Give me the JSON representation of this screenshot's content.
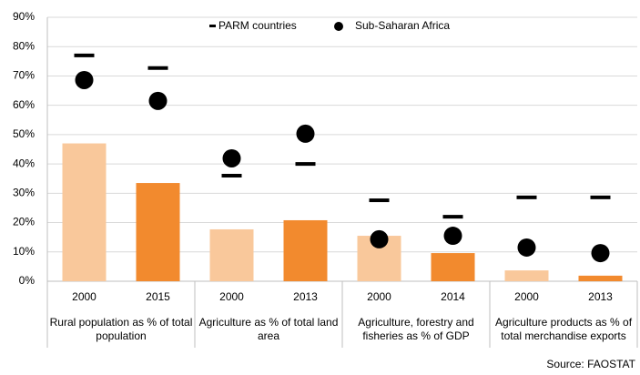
{
  "chart_data": {
    "type": "bar",
    "categories": [
      "2000",
      "2015",
      "2000",
      "2013",
      "2000",
      "2014",
      "2000",
      "2013"
    ],
    "group_labels": [
      "Rural population as % of total population",
      "Agriculture as % of total land area",
      "Agriculture, forestry and fisheries as % of GDP",
      "Agriculture products as % of total merchandise exports"
    ],
    "series": [
      {
        "type": "bar",
        "colors": [
          "#f9c89b",
          "#f28a2e",
          "#f9c89b",
          "#f28a2e",
          "#f9c89b",
          "#f28a2e",
          "#f9c89b",
          "#f28a2e"
        ],
        "values": [
          47,
          33.5,
          17.7,
          20.8,
          15.5,
          9.6,
          3.7,
          1.9
        ]
      },
      {
        "type": "dash",
        "name": "PARM countries",
        "color": "#000000",
        "values": [
          77,
          72.7,
          36,
          40,
          27.6,
          22,
          28.6,
          28.6
        ]
      },
      {
        "type": "dot",
        "name": "Sub-Saharan Africa",
        "color": "#000000",
        "values": [
          68.6,
          61.5,
          41.9,
          50.3,
          14.3,
          15.5,
          11.5,
          9.6
        ]
      }
    ],
    "ylim": [
      0,
      90
    ],
    "yticks": [
      {
        "value": 0,
        "label": "0%"
      },
      {
        "value": 10,
        "label": "10%"
      },
      {
        "value": 20,
        "label": "20%"
      },
      {
        "value": 30,
        "label": "30%"
      },
      {
        "value": 40,
        "label": "40%"
      },
      {
        "value": 50,
        "label": "50%"
      },
      {
        "value": 60,
        "label": "60%"
      },
      {
        "value": 70,
        "label": "70%"
      },
      {
        "value": 80,
        "label": "80%"
      },
      {
        "value": 90,
        "label": "90%"
      }
    ],
    "grid": true,
    "legend": "top",
    "source": "Source: FAOSTAT"
  }
}
